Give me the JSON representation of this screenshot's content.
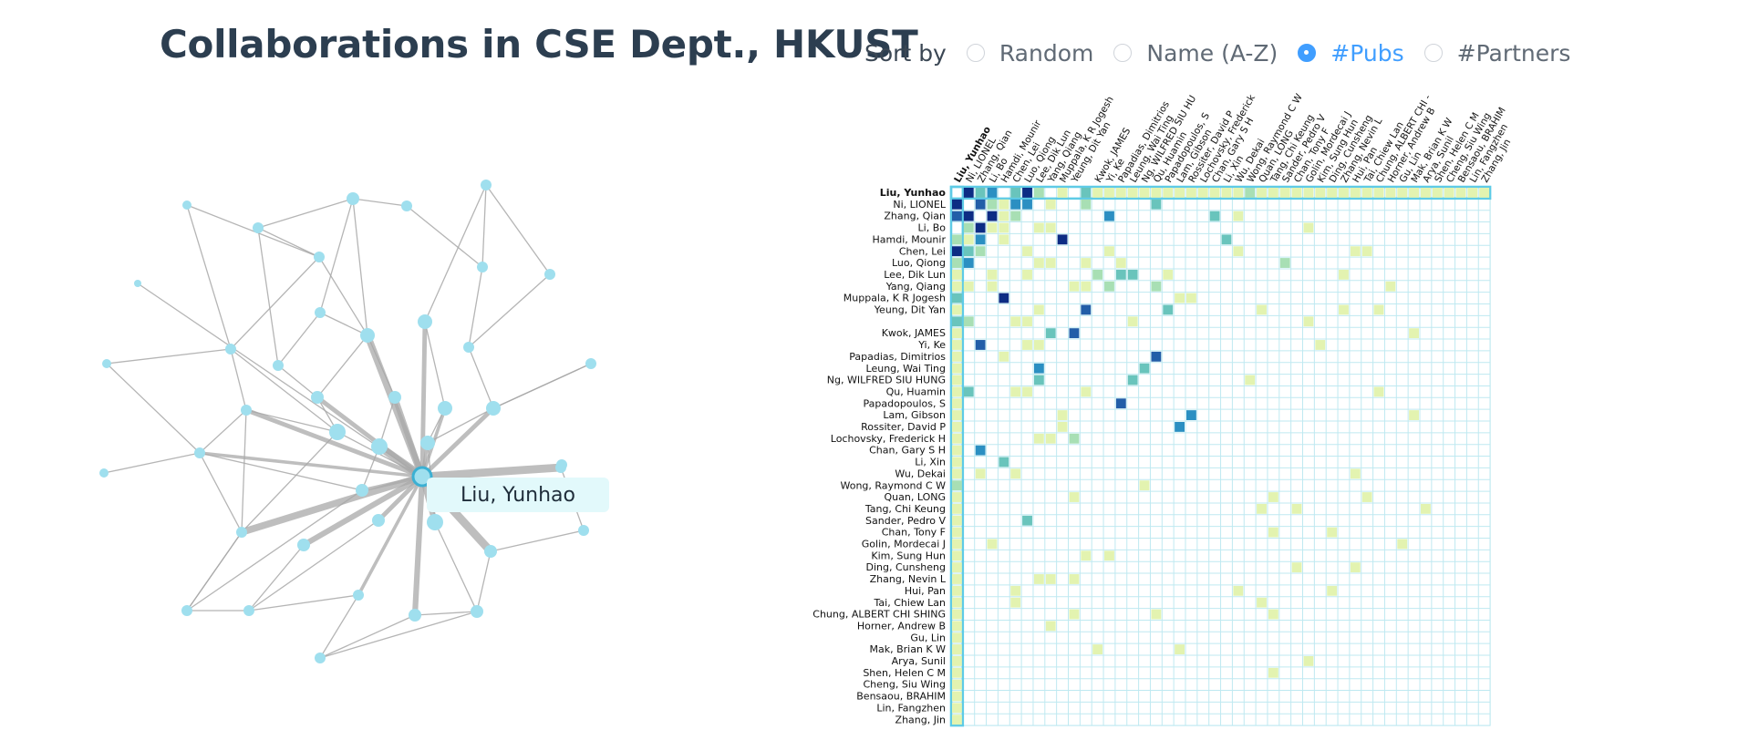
{
  "title": "Collaborations in CSE Dept., HKUST",
  "sort": {
    "label": "Sort by",
    "options": [
      "Random",
      "Name (A-Z)",
      "#Pubs",
      "#Partners"
    ],
    "selected": "#Pubs"
  },
  "colors": {
    "accent": "#409eff",
    "node": "#9fdfee",
    "edge": "#a8a8a8",
    "cell_border": "#bfe9f1",
    "highlight": "#5ecbe6",
    "scale": [
      "#f7fcc0",
      "#e3f3b0",
      "#a8dfb4",
      "#69c4bc",
      "#2b8fc2",
      "#225ea8",
      "#0c2c84"
    ]
  },
  "graph": {
    "tooltip": "Liu, Yunhao",
    "selected_node": "Liu, Yunhao"
  },
  "matrix": {
    "highlight": "Liu, Yunhao",
    "names": [
      "Liu, Yunhao",
      "Ni, LIONEL",
      "Zhang, Qian",
      "Li, Bo",
      "Hamdi, Mounir",
      "Chen, Lei",
      "Luo, Qiong",
      "Lee, Dik Lun",
      "Yang, Qiang",
      "Muppala, K R Jogesh",
      "Yeung, Dit Yan",
      "",
      "Kwok, JAMES",
      "Yi, Ke",
      "Papadias, Dimitrios",
      "Leung, Wai Ting",
      "Ng, WILFRED SIU HUNG",
      "Qu, Huamin",
      "Papadopoulos, S",
      "Lam, Gibson",
      "Rossiter, David P",
      "Lochovsky, Frederick H",
      "Chan, Gary S H",
      "Li, Xin",
      "Wu, Dekai",
      "Wong, Raymond C W",
      "Quan, LONG",
      "Tang, Chi Keung",
      "Sander, Pedro V",
      "Chan, Tony F",
      "Golin, Mordecai J",
      "Kim, Sung Hun",
      "Ding, Cunsheng",
      "Zhang, Nevin L",
      "Hui, Pan",
      "Tai, Chiew Lan",
      "Chung, ALBERT CHI SHING",
      "Horner, Andrew B",
      "Gu, Lin",
      "Mak, Brian K W",
      "Arya, Sunil",
      "Shen, Helen C M",
      "Cheng, Siu Wing",
      "Bensaou, BRAHIM",
      "Lin, Fangzhen",
      "Zhang, Jin"
    ],
    "column_labels": [
      "Liu, Yunhao",
      "Ni, LIONEL",
      "Zhang, Qian",
      "Li, Bo",
      "Hamdi, Mounir",
      "Chen, Lei",
      "Luo, Qiong",
      "Lee, Dik Lun",
      "Yang, Qiang",
      "Muppala, K R Jogesh",
      "Yeung, Dit Yan",
      "",
      "Kwok, JAMES",
      "Yi, Ke",
      "Papadias, Dimitrios",
      "Leung, Wai Ting",
      "Ng, WILFRED SIU HU",
      "Qu, Huamin",
      "Papadopoulos, S",
      "Lam, Gibson",
      "Rossiter, David P",
      "Lochovsky, Frederick",
      "Chan, Gary S H",
      "Li, Xin",
      "Wu, Dekai",
      "Wong, Raymond C W",
      "Quan, LONG",
      "Tang, Chi Keung",
      "Sander, Pedro V",
      "Chan, Tony F",
      "Golin, Mordecai J",
      "Kim, Sung Hun",
      "Ding, Cunsheng",
      "Zhang, Nevin L",
      "Hui, Pan",
      "Tai, Chiew Lan",
      "Chung, ALBERT CHI -",
      "Horner, Andrew B",
      "Gu, Lin",
      "Mak, Brian K W",
      "Arya, Sunil",
      "Shen, Helen C M",
      "Cheng, Siu Wing",
      "Bensaou, BRAHIM",
      "Lin, Fangzhen",
      "Zhang, Jin"
    ]
  }
}
